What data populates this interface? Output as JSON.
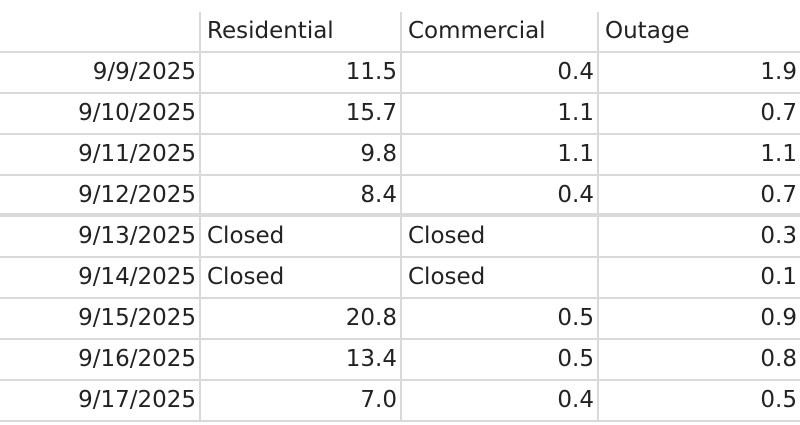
{
  "headers": [
    "",
    "Residential",
    "Commercial",
    "Outage"
  ],
  "rows": [
    {
      "date": "9/9/2025",
      "residential": "11.5",
      "commercial": "0.4",
      "outage": "1.9"
    },
    {
      "date": "9/10/2025",
      "residential": "15.7",
      "commercial": "1.1",
      "outage": "0.7"
    },
    {
      "date": "9/11/2025",
      "residential": "9.8",
      "commercial": "1.1",
      "outage": "1.1"
    },
    {
      "date": "9/12/2025",
      "residential": "8.4",
      "commercial": "0.4",
      "outage": "0.7"
    },
    {
      "date": "9/13/2025",
      "residential": "Closed",
      "commercial": "Closed",
      "outage": "0.3"
    },
    {
      "date": "9/14/2025",
      "residential": "Closed",
      "commercial": "Closed",
      "outage": "0.1"
    },
    {
      "date": "9/15/2025",
      "residential": "20.8",
      "commercial": "0.5",
      "outage": "0.9"
    },
    {
      "date": "9/16/2025",
      "residential": "13.4",
      "commercial": "0.5",
      "outage": "0.8"
    },
    {
      "date": "9/17/2025",
      "residential": "7.0",
      "commercial": "0.4",
      "outage": "0.5"
    }
  ]
}
